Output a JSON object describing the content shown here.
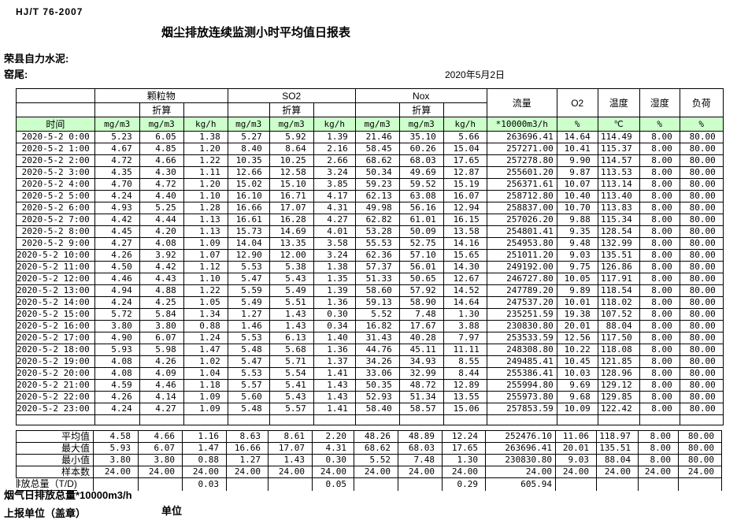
{
  "header": {
    "standard": "HJ/T 76-2007",
    "title": "烟尘排放连续监测小时平均值日报表",
    "company": "荣县自力水泥:",
    "kiln": "窑尾:",
    "date": "2020年5月2日"
  },
  "table": {
    "time_header": "时间",
    "converted_label": "折算",
    "groups": {
      "pm": "颗粒物",
      "so2": "SO2",
      "nox": "Nox",
      "flow": "流量",
      "o2": "O2",
      "temp": "温度",
      "humidity": "湿度",
      "load": "负荷"
    },
    "units": [
      "mg/m3",
      "mg/m3",
      "kg/h",
      "mg/m3",
      "mg/m3",
      "kg/h",
      "mg/m3",
      "mg/m3",
      "kg/h",
      "*10000m3/h",
      "%",
      "℃",
      "%",
      "%"
    ],
    "colors": {
      "header_green": "#ccffcc"
    },
    "rows": [
      {
        "time": "2020-5-2 0:00",
        "values": [
          "5.23",
          "6.05",
          "1.38",
          "5.27",
          "5.92",
          "1.39",
          "21.46",
          "35.10",
          "5.66",
          "263696.41",
          "14.64",
          "114.49",
          "8.00",
          "80.00"
        ]
      },
      {
        "time": "2020-5-2 1:00",
        "values": [
          "4.67",
          "4.85",
          "1.20",
          "8.40",
          "8.64",
          "2.16",
          "58.45",
          "60.26",
          "15.04",
          "257271.00",
          "10.41",
          "115.37",
          "8.00",
          "80.00"
        ]
      },
      {
        "time": "2020-5-2 2:00",
        "values": [
          "4.72",
          "4.66",
          "1.22",
          "10.35",
          "10.25",
          "2.66",
          "68.62",
          "68.03",
          "17.65",
          "257278.80",
          "9.90",
          "114.57",
          "8.00",
          "80.00"
        ]
      },
      {
        "time": "2020-5-2 3:00",
        "values": [
          "4.35",
          "4.30",
          "1.11",
          "12.66",
          "12.58",
          "3.24",
          "50.34",
          "49.69",
          "12.87",
          "255601.20",
          "9.87",
          "113.53",
          "8.00",
          "80.00"
        ]
      },
      {
        "time": "2020-5-2 4:00",
        "values": [
          "4.70",
          "4.72",
          "1.20",
          "15.02",
          "15.10",
          "3.85",
          "59.23",
          "59.52",
          "15.19",
          "256371.61",
          "10.07",
          "113.14",
          "8.00",
          "80.00"
        ]
      },
      {
        "time": "2020-5-2 5:00",
        "values": [
          "4.24",
          "4.40",
          "1.10",
          "16.10",
          "16.71",
          "4.17",
          "62.13",
          "63.08",
          "16.07",
          "258712.80",
          "10.40",
          "113.40",
          "8.00",
          "80.00"
        ]
      },
      {
        "time": "2020-5-2 6:00",
        "values": [
          "4.93",
          "5.25",
          "1.28",
          "16.66",
          "17.07",
          "4.31",
          "49.98",
          "56.16",
          "12.94",
          "258837.00",
          "10.70",
          "113.83",
          "8.00",
          "80.00"
        ]
      },
      {
        "time": "2020-5-2 7:00",
        "values": [
          "4.42",
          "4.44",
          "1.13",
          "16.61",
          "16.28",
          "4.27",
          "62.82",
          "61.01",
          "16.15",
          "257026.20",
          "9.88",
          "115.34",
          "8.00",
          "80.00"
        ]
      },
      {
        "time": "2020-5-2 8:00",
        "values": [
          "4.45",
          "4.20",
          "1.13",
          "15.73",
          "14.69",
          "4.01",
          "53.28",
          "50.09",
          "13.58",
          "254801.41",
          "9.35",
          "128.54",
          "8.00",
          "80.00"
        ]
      },
      {
        "time": "2020-5-2 9:00",
        "values": [
          "4.27",
          "4.08",
          "1.09",
          "14.04",
          "13.35",
          "3.58",
          "55.53",
          "52.75",
          "14.16",
          "254953.80",
          "9.48",
          "132.99",
          "8.00",
          "80.00"
        ]
      },
      {
        "time": "2020-5-2 10:00",
        "values": [
          "4.26",
          "3.92",
          "1.07",
          "12.90",
          "12.00",
          "3.24",
          "62.36",
          "57.10",
          "15.65",
          "251011.20",
          "9.03",
          "135.51",
          "8.00",
          "80.00"
        ]
      },
      {
        "time": "2020-5-2 11:00",
        "values": [
          "4.50",
          "4.42",
          "1.12",
          "5.53",
          "5.38",
          "1.38",
          "57.37",
          "56.01",
          "14.30",
          "249192.00",
          "9.75",
          "126.86",
          "8.00",
          "80.00"
        ]
      },
      {
        "time": "2020-5-2 12:00",
        "values": [
          "4.46",
          "4.43",
          "1.10",
          "5.47",
          "5.43",
          "1.35",
          "51.33",
          "50.65",
          "12.67",
          "246727.80",
          "10.05",
          "117.91",
          "8.00",
          "80.00"
        ]
      },
      {
        "time": "2020-5-2 13:00",
        "values": [
          "4.94",
          "4.88",
          "1.22",
          "5.59",
          "5.49",
          "1.39",
          "58.60",
          "57.92",
          "14.52",
          "247789.20",
          "9.89",
          "118.54",
          "8.00",
          "80.00"
        ]
      },
      {
        "time": "2020-5-2 14:00",
        "values": [
          "4.24",
          "4.25",
          "1.05",
          "5.49",
          "5.51",
          "1.36",
          "59.13",
          "58.90",
          "14.64",
          "247537.20",
          "10.01",
          "118.02",
          "8.00",
          "80.00"
        ]
      },
      {
        "time": "2020-5-2 15:00",
        "values": [
          "5.72",
          "5.84",
          "1.34",
          "1.27",
          "1.43",
          "0.30",
          "5.52",
          "7.48",
          "1.30",
          "235251.59",
          "19.38",
          "107.52",
          "8.00",
          "80.00"
        ]
      },
      {
        "time": "2020-5-2 16:00",
        "values": [
          "3.80",
          "3.80",
          "0.88",
          "1.46",
          "1.43",
          "0.34",
          "16.82",
          "17.67",
          "3.88",
          "230830.80",
          "20.01",
          "88.04",
          "8.00",
          "80.00"
        ]
      },
      {
        "time": "2020-5-2 17:00",
        "values": [
          "4.90",
          "6.07",
          "1.24",
          "5.53",
          "6.13",
          "1.40",
          "31.43",
          "40.28",
          "7.97",
          "253533.59",
          "12.56",
          "117.50",
          "8.00",
          "80.00"
        ]
      },
      {
        "time": "2020-5-2 18:00",
        "values": [
          "5.93",
          "5.98",
          "1.47",
          "5.48",
          "5.68",
          "1.36",
          "44.76",
          "45.11",
          "11.11",
          "248308.80",
          "10.22",
          "118.08",
          "8.00",
          "80.00"
        ]
      },
      {
        "time": "2020-5-2 19:00",
        "values": [
          "4.08",
          "4.26",
          "1.02",
          "5.47",
          "5.71",
          "1.37",
          "34.26",
          "34.93",
          "8.55",
          "249485.41",
          "10.45",
          "121.85",
          "8.00",
          "80.00"
        ]
      },
      {
        "time": "2020-5-2 20:00",
        "values": [
          "4.08",
          "4.09",
          "1.04",
          "5.53",
          "5.54",
          "1.41",
          "33.06",
          "32.99",
          "8.44",
          "255386.41",
          "10.03",
          "128.96",
          "8.00",
          "80.00"
        ]
      },
      {
        "time": "2020-5-2 21:00",
        "values": [
          "4.59",
          "4.46",
          "1.18",
          "5.57",
          "5.41",
          "1.43",
          "50.35",
          "48.72",
          "12.89",
          "255994.80",
          "9.69",
          "129.12",
          "8.00",
          "80.00"
        ]
      },
      {
        "time": "2020-5-2 22:00",
        "values": [
          "4.26",
          "4.14",
          "1.09",
          "5.60",
          "5.43",
          "1.43",
          "52.93",
          "51.34",
          "13.55",
          "255973.80",
          "9.68",
          "129.85",
          "8.00",
          "80.00"
        ]
      },
      {
        "time": "2020-5-2 23:00",
        "values": [
          "4.24",
          "4.27",
          "1.09",
          "5.48",
          "5.57",
          "1.41",
          "58.40",
          "58.57",
          "15.06",
          "257853.59",
          "10.09",
          "122.42",
          "8.00",
          "80.00"
        ]
      }
    ],
    "summary": [
      {
        "label": "平均值",
        "values": [
          "4.58",
          "4.66",
          "1.16",
          "8.63",
          "8.61",
          "2.20",
          "48.26",
          "48.89",
          "12.24",
          "252476.10",
          "11.06",
          "118.97",
          "8.00",
          "80.00"
        ]
      },
      {
        "label": "最大值",
        "values": [
          "5.93",
          "6.07",
          "1.47",
          "16.66",
          "17.07",
          "4.31",
          "68.62",
          "68.03",
          "17.65",
          "263696.41",
          "20.01",
          "135.51",
          "8.00",
          "80.00"
        ]
      },
      {
        "label": "最小值",
        "values": [
          "3.80",
          "3.80",
          "0.88",
          "1.27",
          "1.43",
          "0.30",
          "5.52",
          "7.48",
          "1.30",
          "230830.80",
          "9.03",
          "88.04",
          "8.00",
          "80.00"
        ]
      },
      {
        "label": "样本数",
        "values": [
          "24.00",
          "24.00",
          "24.00",
          "24.00",
          "24.00",
          "24.00",
          "24.00",
          "24.00",
          "24.00",
          "24.00",
          "24.00",
          "24.00",
          "24.00",
          "24.00"
        ]
      }
    ],
    "total": {
      "label": "日排放总量（T/D)",
      "values": [
        "",
        "",
        "0.03",
        "",
        "",
        "0.05",
        "",
        "",
        "0.29",
        "605.94",
        "",
        "",
        "",
        ""
      ]
    }
  },
  "footer": {
    "flue_total": "烟气日排放总量*10000m3/h",
    "reporting_unit": "上报单位（盖章）",
    "unit": "单位"
  }
}
